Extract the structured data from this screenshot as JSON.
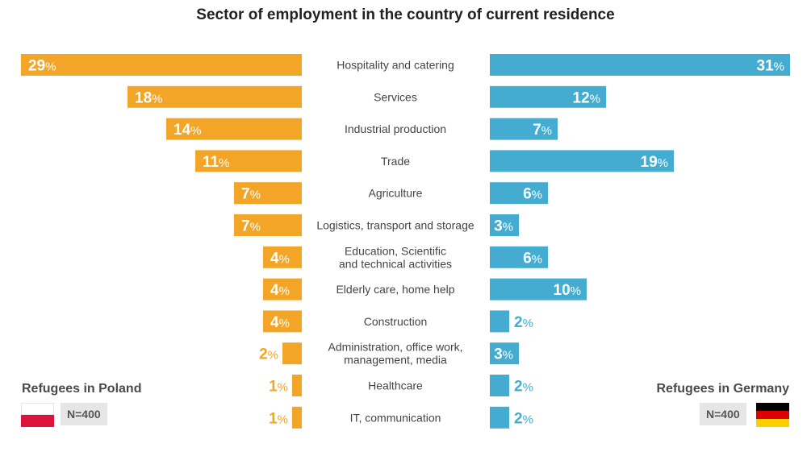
{
  "chart_data": {
    "type": "bar",
    "title": "Sector of employment in the country of current residence",
    "categories": [
      [
        "Hospitality and catering"
      ],
      [
        "Services"
      ],
      [
        "Industrial production"
      ],
      [
        "Trade"
      ],
      [
        "Agriculture"
      ],
      [
        "Logistics, transport and storage"
      ],
      [
        "Education, Scientific",
        "and technical activities"
      ],
      [
        "Elderly care, home help"
      ],
      [
        "Construction"
      ],
      [
        "Administration, office work,",
        "management, media"
      ],
      [
        "Healthcare"
      ],
      [
        "IT, communication"
      ]
    ],
    "series": [
      {
        "name": "Refugees in Poland",
        "side": "left",
        "color": "#f2a526",
        "values": [
          29,
          18,
          14,
          11,
          7,
          7,
          4,
          4,
          4,
          2,
          1,
          1
        ]
      },
      {
        "name": "Refugees in Germany",
        "side": "right",
        "color": "#45acd1",
        "values": [
          31,
          12,
          7,
          19,
          6,
          3,
          6,
          10,
          2,
          3,
          2,
          2
        ]
      }
    ],
    "unit": "%",
    "xlim": [
      0,
      31
    ]
  },
  "legend": {
    "poland": {
      "title": "Refugees in Poland",
      "n": "N=400"
    },
    "germany": {
      "title": "Refugees in Germany",
      "n": "N=400"
    }
  }
}
